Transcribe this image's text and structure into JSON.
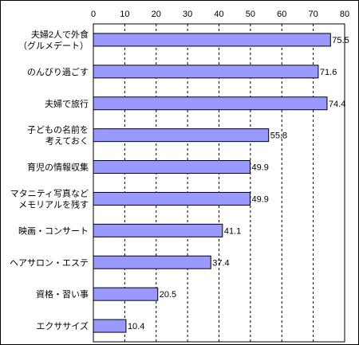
{
  "chart_data": {
    "type": "bar",
    "orientation": "horizontal",
    "title": "",
    "xlabel": "",
    "ylabel": "",
    "xlim": [
      0,
      80
    ],
    "ticks": [
      0,
      10,
      20,
      30,
      40,
      50,
      60,
      70,
      80
    ],
    "grid": "vertical dashed",
    "categories": [
      [
        "夫婦2人で外食",
        "（グルメデート）"
      ],
      [
        "のんびり過ごす"
      ],
      [
        "夫婦で旅行"
      ],
      [
        "子どもの名前を",
        "考えておく"
      ],
      [
        "育児の情報収集"
      ],
      [
        "マタニティ写真など",
        "メモリアルを残す"
      ],
      [
        "映画・コンサート"
      ],
      [
        "ヘアサロン・エステ"
      ],
      [
        "資格・習い事"
      ],
      [
        "エクササイズ"
      ]
    ],
    "values": [
      75.5,
      71.6,
      74.4,
      55.8,
      49.9,
      49.9,
      41.1,
      37.4,
      20.5,
      10.4
    ],
    "value_labels": [
      "75.5",
      "71.6",
      "74.4",
      "55.8",
      "49.9",
      "49.9",
      "41.1",
      "37.4",
      "20.5",
      "10.4"
    ],
    "colors": {
      "bar_fill": "#9999ff",
      "bar_stroke": "#000000",
      "grid": "#000000"
    }
  }
}
